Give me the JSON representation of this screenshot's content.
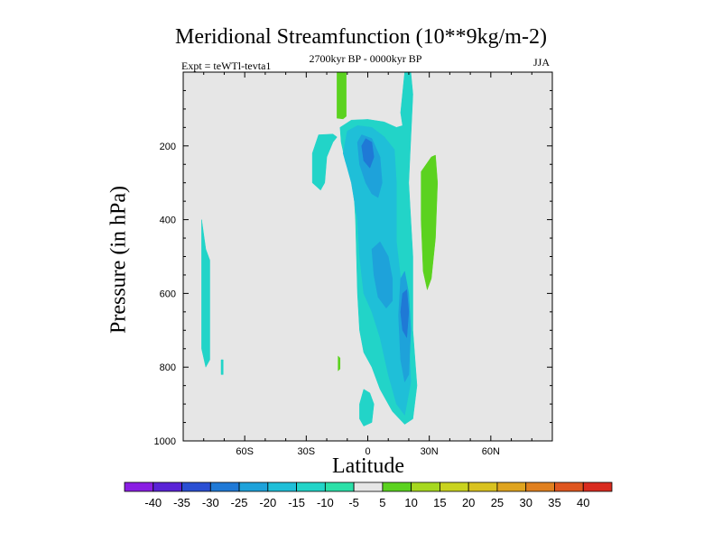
{
  "chart_data": {
    "type": "heatmap",
    "title": "Meridional Streamfunction (10**9kg/m-2)",
    "subtitle_left": "Expt = teWTl-tevta1",
    "subtitle_center": "2700kyr BP - 0000kyr BP",
    "subtitle_right": "JJA",
    "xlabel": "Latitude",
    "ylabel": "Pressure (in hPa)",
    "xlim": [
      -90,
      90
    ],
    "ylim": [
      1000,
      0
    ],
    "x_ticks": [
      {
        "value": -60,
        "label": "60S"
      },
      {
        "value": -30,
        "label": "30S"
      },
      {
        "value": 0,
        "label": "0"
      },
      {
        "value": 30,
        "label": "30N"
      },
      {
        "value": 60,
        "label": "60N"
      }
    ],
    "y_ticks": [
      {
        "value": 200,
        "label": "200"
      },
      {
        "value": 400,
        "label": "400"
      },
      {
        "value": 600,
        "label": "600"
      },
      {
        "value": 800,
        "label": "800"
      },
      {
        "value": 1000,
        "label": "1000"
      }
    ],
    "background_color": "#e6e6e6",
    "colorbar": {
      "levels": [
        "-40",
        "-35",
        "-30",
        "-25",
        "-20",
        "-15",
        "-10",
        "-5",
        "5",
        "10",
        "15",
        "20",
        "25",
        "30",
        "35",
        "40"
      ],
      "colors": [
        "#8a1ee3",
        "#5a23d6",
        "#2a4fd3",
        "#1f79d6",
        "#1ea2da",
        "#1fbfd8",
        "#22d4c8",
        "#2be0a8",
        "#e6e6e6",
        "#5bd21f",
        "#a6d81f",
        "#c9d31f",
        "#d9c21f",
        "#dfa41f",
        "#e0801f",
        "#df561f",
        "#d92b1f"
      ]
    },
    "regions": [
      {
        "level": "-10",
        "polygon": [
          [
            -13.5,
            150
          ],
          [
            -8,
            130
          ],
          [
            0,
            128
          ],
          [
            8,
            135
          ],
          [
            14,
            150
          ],
          [
            17,
            145
          ],
          [
            16,
            110
          ],
          [
            18,
            0
          ],
          [
            21,
            0
          ],
          [
            22,
            60
          ],
          [
            20,
            300
          ],
          [
            22,
            500
          ],
          [
            22,
            700
          ],
          [
            24,
            850
          ],
          [
            22,
            940
          ],
          [
            18,
            955
          ],
          [
            12,
            920
          ],
          [
            6,
            860
          ],
          [
            2,
            800
          ],
          [
            -2,
            760
          ],
          [
            -4,
            700
          ],
          [
            -5,
            600
          ],
          [
            -5.5,
            500
          ],
          [
            -6,
            400
          ],
          [
            -6.5,
            350
          ],
          [
            -8,
            290
          ],
          [
            -11,
            240
          ],
          [
            -13,
            190
          ]
        ]
      },
      {
        "level": "-10",
        "polygon": [
          [
            -27,
            220
          ],
          [
            -24,
            170
          ],
          [
            -17,
            168
          ],
          [
            -15,
            176
          ],
          [
            -17,
            190
          ],
          [
            -20,
            230
          ],
          [
            -21,
            300
          ],
          [
            -23,
            320
          ],
          [
            -27,
            300
          ]
        ]
      },
      {
        "level": "-10",
        "polygon": [
          [
            -81,
            400
          ],
          [
            -79,
            480
          ],
          [
            -77,
            510
          ],
          [
            -77,
            780
          ],
          [
            -79,
            800
          ],
          [
            -81,
            750
          ]
        ]
      },
      {
        "level": "-10",
        "polygon": [
          [
            -71.5,
            780
          ],
          [
            -70.5,
            780
          ],
          [
            -70.5,
            820
          ],
          [
            -71.5,
            820
          ]
        ]
      },
      {
        "level": "-10",
        "polygon": [
          [
            -4,
            900
          ],
          [
            -2,
            860
          ],
          [
            1,
            870
          ],
          [
            3,
            900
          ],
          [
            2,
            950
          ],
          [
            -2,
            960
          ],
          [
            -4,
            940
          ]
        ]
      },
      {
        "level": "-15",
        "polygon": [
          [
            -12,
            220
          ],
          [
            -10,
            160
          ],
          [
            -5,
            145
          ],
          [
            2,
            150
          ],
          [
            8,
            175
          ],
          [
            13,
            210
          ],
          [
            14,
            300
          ],
          [
            14,
            460
          ],
          [
            16,
            560
          ],
          [
            18,
            600
          ],
          [
            20,
            720
          ],
          [
            21,
            840
          ],
          [
            18,
            930
          ],
          [
            14,
            900
          ],
          [
            10,
            820
          ],
          [
            6,
            720
          ],
          [
            2,
            650
          ],
          [
            -2,
            600
          ],
          [
            -4,
            500
          ],
          [
            -5,
            400
          ],
          [
            -8,
            300
          ],
          [
            -10,
            260
          ]
        ]
      },
      {
        "level": "-20",
        "polygon": [
          [
            -5,
            190
          ],
          [
            -3,
            170
          ],
          [
            2,
            180
          ],
          [
            6,
            230
          ],
          [
            7,
            300
          ],
          [
            5,
            340
          ],
          [
            2,
            330
          ],
          [
            -1,
            300
          ],
          [
            -4,
            250
          ]
        ]
      },
      {
        "level": "-20",
        "polygon": [
          [
            2,
            480
          ],
          [
            6,
            460
          ],
          [
            10,
            500
          ],
          [
            12,
            560
          ],
          [
            12,
            620
          ],
          [
            9,
            640
          ],
          [
            5,
            610
          ],
          [
            3,
            550
          ]
        ]
      },
      {
        "level": "-20",
        "polygon": [
          [
            16,
            560
          ],
          [
            18,
            540
          ],
          [
            20,
            600
          ],
          [
            21,
            700
          ],
          [
            20,
            820
          ],
          [
            18,
            840
          ],
          [
            16,
            780
          ],
          [
            15,
            660
          ]
        ]
      },
      {
        "level": "-25",
        "polygon": [
          [
            -3,
            200
          ],
          [
            -1,
            180
          ],
          [
            2,
            190
          ],
          [
            3,
            230
          ],
          [
            1,
            260
          ],
          [
            -2,
            240
          ]
        ]
      },
      {
        "level": "-25",
        "polygon": [
          [
            17,
            600
          ],
          [
            19,
            590
          ],
          [
            20,
            650
          ],
          [
            19,
            720
          ],
          [
            17,
            700
          ],
          [
            16,
            650
          ]
        ]
      },
      {
        "level": "5",
        "polygon": [
          [
            -15,
            0
          ],
          [
            -10.5,
            0
          ],
          [
            -10.5,
            120
          ],
          [
            -12,
            127
          ],
          [
            -15,
            125
          ]
        ]
      },
      {
        "level": "5",
        "polygon": [
          [
            26,
            270
          ],
          [
            31,
            230
          ],
          [
            33,
            225
          ],
          [
            34,
            300
          ],
          [
            33,
            450
          ],
          [
            31,
            560
          ],
          [
            29,
            590
          ],
          [
            27,
            540
          ],
          [
            26,
            400
          ]
        ]
      },
      {
        "level": "5",
        "polygon": [
          [
            -14.5,
            770
          ],
          [
            -13.5,
            775
          ],
          [
            -13.5,
            805
          ],
          [
            -14.5,
            810
          ]
        ]
      }
    ]
  }
}
